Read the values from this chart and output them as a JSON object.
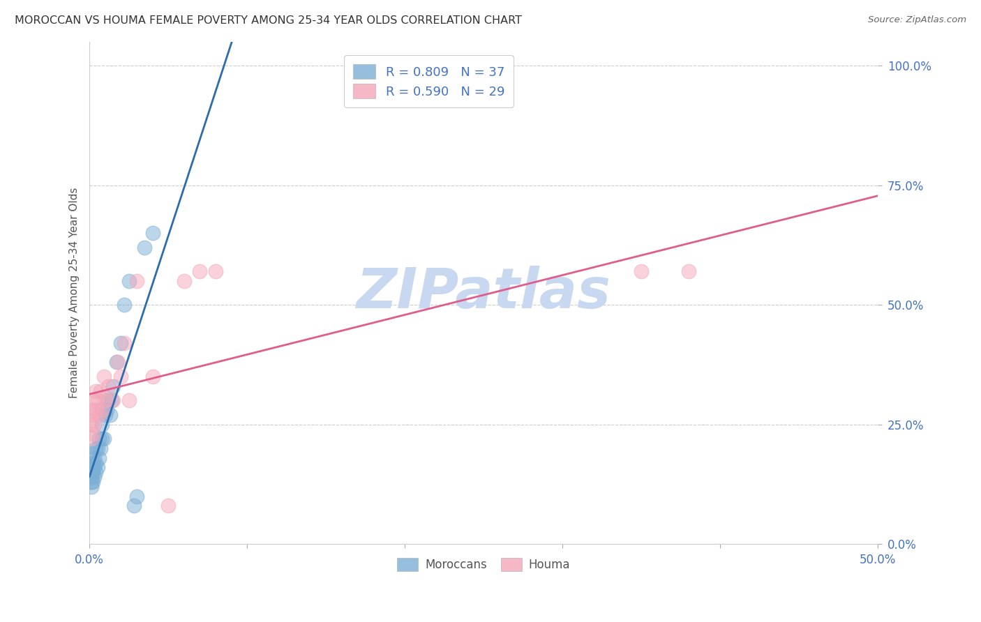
{
  "title": "MOROCCAN VS HOUMA FEMALE POVERTY AMONG 25-34 YEAR OLDS CORRELATION CHART",
  "source": "Source: ZipAtlas.com",
  "ylabel": "Female Poverty Among 25-34 Year Olds",
  "xlim": [
    0.0,
    0.5
  ],
  "ylim": [
    0.0,
    1.05
  ],
  "xtick_positions": [
    0.0,
    0.1,
    0.2,
    0.3,
    0.4,
    0.5
  ],
  "ytick_positions": [
    0.0,
    0.25,
    0.5,
    0.75,
    1.0
  ],
  "x_end_labels": {
    "0": "0.0%",
    "5": "50.0%"
  },
  "ytick_labels": [
    "0.0%",
    "25.0%",
    "50.0%",
    "75.0%",
    "100.0%"
  ],
  "moroccan_color": "#7bafd4",
  "houma_color": "#f4a7b9",
  "moroccan_line_color": "#2b6cb0",
  "houma_line_color": "#e05c8a",
  "moroccan_R": 0.809,
  "moroccan_N": 37,
  "houma_R": 0.59,
  "houma_N": 29,
  "watermark": "ZIPatlas",
  "watermark_color": "#c8d8f0",
  "background_color": "#ffffff",
  "moroccan_x": [
    0.001,
    0.001,
    0.001,
    0.001,
    0.001,
    0.002,
    0.002,
    0.002,
    0.002,
    0.003,
    0.003,
    0.003,
    0.004,
    0.004,
    0.004,
    0.005,
    0.005,
    0.006,
    0.006,
    0.007,
    0.008,
    0.008,
    0.009,
    0.01,
    0.011,
    0.012,
    0.013,
    0.014,
    0.015,
    0.017,
    0.02,
    0.022,
    0.025,
    0.028,
    0.03,
    0.035,
    0.04
  ],
  "moroccan_y": [
    0.12,
    0.13,
    0.14,
    0.15,
    0.16,
    0.13,
    0.15,
    0.17,
    0.19,
    0.14,
    0.16,
    0.18,
    0.15,
    0.17,
    0.2,
    0.16,
    0.2,
    0.18,
    0.22,
    0.2,
    0.22,
    0.25,
    0.22,
    0.27,
    0.28,
    0.3,
    0.27,
    0.3,
    0.33,
    0.38,
    0.42,
    0.5,
    0.55,
    0.08,
    0.1,
    0.62,
    0.65
  ],
  "houma_x": [
    0.001,
    0.001,
    0.001,
    0.002,
    0.002,
    0.003,
    0.003,
    0.004,
    0.004,
    0.005,
    0.006,
    0.007,
    0.008,
    0.009,
    0.01,
    0.012,
    0.015,
    0.018,
    0.02,
    0.022,
    0.025,
    0.03,
    0.04,
    0.05,
    0.06,
    0.07,
    0.08,
    0.35,
    0.38
  ],
  "houma_y": [
    0.22,
    0.25,
    0.28,
    0.23,
    0.27,
    0.25,
    0.3,
    0.28,
    0.32,
    0.3,
    0.27,
    0.32,
    0.28,
    0.35,
    0.3,
    0.33,
    0.3,
    0.38,
    0.35,
    0.42,
    0.3,
    0.55,
    0.35,
    0.08,
    0.55,
    0.57,
    0.57,
    0.57,
    0.57
  ],
  "moroccan_line_start_x": 0.0,
  "moroccan_line_end_x": 0.5,
  "houma_line_start_x": 0.0,
  "houma_line_end_x": 0.5
}
